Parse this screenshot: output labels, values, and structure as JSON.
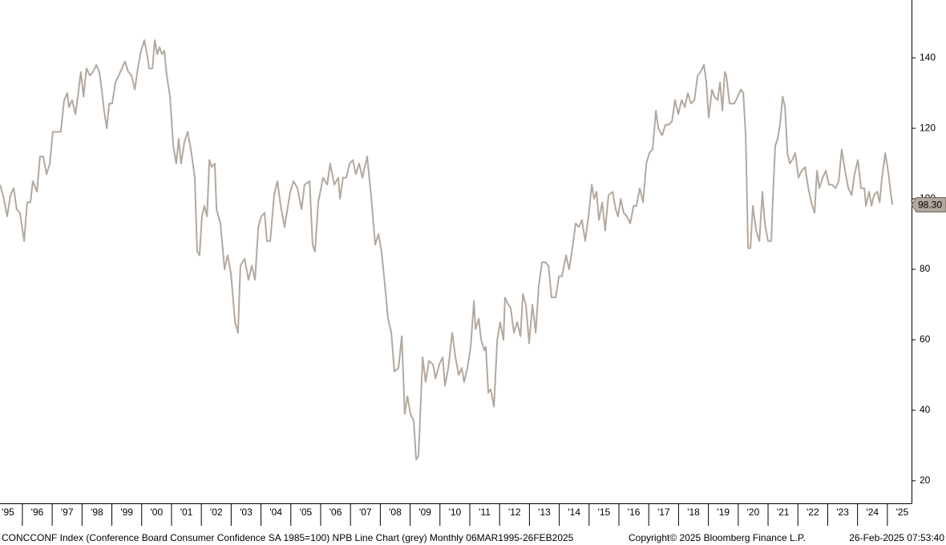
{
  "chart_data": {
    "type": "line",
    "footer_left": "CONCCONF Index (Conference Board Consumer Confidence SA 1985=100) NPB Line Chart (grey)  Monthly 06MAR1995-26FEB2025",
    "footer_copyright": "Copyright© 2025 Bloomberg Finance L.P.",
    "footer_timestamp": "26-Feb-2025 07:53:40",
    "color": "#b3a89e",
    "x": [
      1995.25,
      1995.38,
      1995.49,
      1995.6,
      1995.71,
      1995.81,
      1995.92,
      1996.06,
      1996.16,
      1996.27,
      1996.35,
      1996.49,
      1996.59,
      1996.7,
      1996.81,
      1996.92,
      1997.02,
      1997.13,
      1997.29,
      1997.4,
      1997.51,
      1997.56,
      1997.67,
      1997.78,
      1997.86,
      1997.96,
      1998.05,
      1998.15,
      1998.26,
      1998.37,
      1998.48,
      1998.58,
      1998.66,
      1998.74,
      1998.83,
      1998.91,
      1999.01,
      1999.12,
      1999.23,
      1999.34,
      1999.44,
      1999.55,
      1999.66,
      1999.77,
      1999.87,
      1999.98,
      2000.09,
      2000.2,
      2000.25,
      2000.36,
      2000.44,
      2000.52,
      2000.6,
      2000.68,
      2000.76,
      2000.84,
      2000.95,
      2001.06,
      2001.16,
      2001.24,
      2001.32,
      2001.43,
      2001.54,
      2001.65,
      2001.78,
      2001.86,
      2001.94,
      2002.02,
      2002.1,
      2002.19,
      2002.27,
      2002.35,
      2002.45,
      2002.51,
      2002.64,
      2002.78,
      2002.88,
      2002.99,
      2003.13,
      2003.23,
      2003.31,
      2003.45,
      2003.58,
      2003.69,
      2003.8,
      2003.91,
      2004.01,
      2004.12,
      2004.2,
      2004.31,
      2004.44,
      2004.55,
      2004.66,
      2004.79,
      2004.98,
      2005.09,
      2005.22,
      2005.36,
      2005.46,
      2005.63,
      2005.73,
      2005.81,
      2005.92,
      2006.08,
      2006.22,
      2006.32,
      2006.46,
      2006.59,
      2006.65,
      2006.75,
      2006.86,
      2006.97,
      2007.08,
      2007.18,
      2007.29,
      2007.4,
      2007.56,
      2007.7,
      2007.83,
      2007.94,
      2008.04,
      2008.15,
      2008.26,
      2008.37,
      2008.47,
      2008.61,
      2008.72,
      2008.82,
      2008.91,
      2009.01,
      2009.12,
      2009.2,
      2009.28,
      2009.42,
      2009.52,
      2009.63,
      2009.77,
      2009.85,
      2009.98,
      2010.09,
      2010.17,
      2010.28,
      2010.41,
      2010.52,
      2010.63,
      2010.73,
      2010.81,
      2010.92,
      2011.03,
      2011.14,
      2011.19,
      2011.3,
      2011.38,
      2011.49,
      2011.54,
      2011.62,
      2011.7,
      2011.81,
      2011.92,
      2012.02,
      2012.13,
      2012.18,
      2012.29,
      2012.37,
      2012.48,
      2012.59,
      2012.7,
      2012.78,
      2012.88,
      2012.99,
      2013.1,
      2013.21,
      2013.31,
      2013.42,
      2013.53,
      2013.64,
      2013.74,
      2013.88,
      2013.99,
      2014.09,
      2014.23,
      2014.33,
      2014.44,
      2014.55,
      2014.66,
      2014.76,
      2014.87,
      2014.98,
      2015.09,
      2015.17,
      2015.25,
      2015.33,
      2015.44,
      2015.54,
      2015.65,
      2015.79,
      2015.89,
      2015.97,
      2016.06,
      2016.16,
      2016.27,
      2016.38,
      2016.49,
      2016.59,
      2016.7,
      2016.81,
      2016.92,
      2017.02,
      2017.13,
      2017.24,
      2017.32,
      2017.45,
      2017.56,
      2017.67,
      2017.78,
      2017.88,
      2017.99,
      2018.1,
      2018.21,
      2018.31,
      2018.42,
      2018.53,
      2018.64,
      2018.74,
      2018.85,
      2018.93,
      2019.01,
      2019.12,
      2019.2,
      2019.31,
      2019.39,
      2019.47,
      2019.55,
      2019.6,
      2019.71,
      2019.87,
      2019.98,
      2020.09,
      2020.17,
      2020.25,
      2020.33,
      2020.41,
      2020.49,
      2020.6,
      2020.71,
      2020.81,
      2020.89,
      2021.0,
      2021.11,
      2021.16,
      2021.24,
      2021.32,
      2021.4,
      2021.49,
      2021.57,
      2021.65,
      2021.73,
      2021.81,
      2021.91,
      2022.02,
      2022.13,
      2022.24,
      2022.35,
      2022.45,
      2022.56,
      2022.64,
      2022.72,
      2022.83,
      2022.94,
      2023.04,
      2023.15,
      2023.26,
      2023.37,
      2023.47,
      2023.58,
      2023.69,
      2023.8,
      2023.9,
      2024.01,
      2024.12,
      2024.23,
      2024.28,
      2024.39,
      2024.47,
      2024.55,
      2024.66,
      2024.74,
      2024.82,
      2024.93,
      2025.04,
      2025.12,
      2025.17
    ],
    "values": [
      104,
      100,
      95,
      101,
      103,
      97,
      96,
      88,
      99,
      99,
      105,
      102,
      112,
      112,
      107,
      110,
      119,
      119,
      119,
      128,
      130,
      126,
      128,
      124,
      129,
      136,
      129,
      137,
      135,
      136,
      138,
      136,
      131,
      125,
      120,
      127,
      127,
      133,
      135,
      137,
      139,
      136,
      135,
      131,
      137,
      142,
      145,
      140,
      137,
      137,
      145,
      141,
      143,
      141,
      142,
      135,
      129,
      115,
      110,
      117,
      110,
      116,
      119,
      114,
      106,
      85,
      84,
      95,
      98,
      95,
      111,
      109,
      110,
      97,
      93,
      80,
      84,
      79,
      65,
      62,
      81,
      83,
      77,
      81,
      77,
      92,
      95,
      96,
      88,
      88,
      101,
      105,
      98,
      92,
      102,
      105,
      103,
      97,
      104,
      105,
      87,
      85,
      99,
      106,
      104,
      110,
      104,
      106,
      100,
      106,
      106,
      110,
      111,
      107,
      110,
      106,
      112,
      100,
      87,
      90,
      85,
      76,
      66,
      62,
      51,
      52,
      61,
      39,
      44,
      39,
      37,
      26,
      27,
      55,
      48,
      54,
      53,
      49,
      53,
      55,
      47,
      52,
      62,
      55,
      50,
      52,
      48,
      52,
      58,
      71,
      63,
      66,
      60,
      57,
      58,
      45,
      46,
      41,
      60,
      65,
      60,
      72,
      70,
      69,
      62,
      65,
      61,
      73,
      70,
      59,
      70,
      62,
      75,
      82,
      82,
      81,
      72,
      72,
      78,
      78,
      84,
      80,
      86,
      93,
      92,
      94,
      88,
      95,
      104,
      100,
      102,
      94,
      99,
      91,
      101,
      102,
      97,
      95,
      100,
      96,
      95,
      93,
      98,
      98,
      103,
      99,
      110,
      113,
      114,
      125,
      120,
      118,
      121,
      121,
      122,
      128,
      124,
      128,
      126,
      130,
      127,
      128,
      135,
      136,
      138,
      133,
      123,
      131,
      129,
      128,
      133,
      125,
      136,
      135,
      127,
      127,
      129,
      131,
      130,
      118,
      86,
      86,
      98,
      91,
      88,
      102,
      93,
      88,
      88,
      100,
      115,
      117,
      121,
      129,
      126,
      113,
      110,
      111,
      113,
      106,
      108,
      109,
      103,
      99,
      96,
      108,
      103,
      106,
      108,
      104,
      104,
      103,
      105,
      114,
      108,
      103,
      101,
      107,
      111,
      103,
      103,
      98,
      102,
      98,
      101,
      102,
      99,
      106,
      113,
      107,
      101,
      98.3
    ],
    "last_value": {
      "value": 98.3,
      "label": "98.30"
    },
    "xlim": [
      1995.25,
      2025.81
    ],
    "xticks": [
      {
        "value": 1995,
        "label": "'95"
      },
      {
        "value": 1996,
        "label": "'96"
      },
      {
        "value": 1997,
        "label": "'97"
      },
      {
        "value": 1998,
        "label": "'98"
      },
      {
        "value": 1999,
        "label": "'99"
      },
      {
        "value": 2000,
        "label": "'00"
      },
      {
        "value": 2001,
        "label": "'01"
      },
      {
        "value": 2002,
        "label": "'02"
      },
      {
        "value": 2003,
        "label": "'03"
      },
      {
        "value": 2004,
        "label": "'04"
      },
      {
        "value": 2005,
        "label": "'05"
      },
      {
        "value": 2006,
        "label": "'06"
      },
      {
        "value": 2007,
        "label": "'07"
      },
      {
        "value": 2008,
        "label": "'08"
      },
      {
        "value": 2009,
        "label": "'09"
      },
      {
        "value": 2010,
        "label": "'10"
      },
      {
        "value": 2011,
        "label": "'11"
      },
      {
        "value": 2012,
        "label": "'12"
      },
      {
        "value": 2013,
        "label": "'13"
      },
      {
        "value": 2014,
        "label": "'14"
      },
      {
        "value": 2015,
        "label": "'15"
      },
      {
        "value": 2016,
        "label": "'16"
      },
      {
        "value": 2017,
        "label": "'17"
      },
      {
        "value": 2018,
        "label": "'18"
      },
      {
        "value": 2019,
        "label": "'19"
      },
      {
        "value": 2020,
        "label": "'20"
      },
      {
        "value": 2021,
        "label": "'21"
      },
      {
        "value": 2022,
        "label": "'22"
      },
      {
        "value": 2023,
        "label": "'23"
      },
      {
        "value": 2024,
        "label": "'24"
      },
      {
        "value": 2025,
        "label": "'25"
      }
    ],
    "ylim": [
      13.6,
      156.4
    ],
    "yticks": [
      20,
      40,
      60,
      80,
      100,
      120,
      140
    ]
  }
}
